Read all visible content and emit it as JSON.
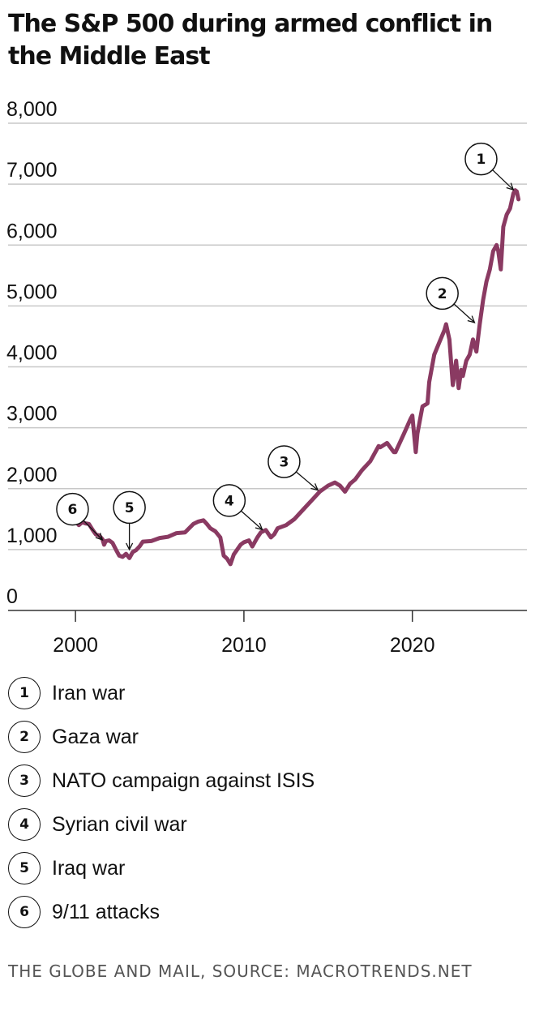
{
  "title": "The S&P 500 during armed conflict in the Middle East",
  "colors": {
    "line": "#8a3a62",
    "grid": "#c8c8c8",
    "axis": "#333333",
    "text": "#111111"
  },
  "chart_data": {
    "type": "line",
    "title": "The S&P 500 during armed conflict in the Middle East",
    "xlabel": "",
    "ylabel": "",
    "xlim": [
      1996,
      2026.8
    ],
    "ylim": [
      0,
      8000
    ],
    "x_ticks": [
      2000,
      2010,
      2020
    ],
    "x_tick_labels": [
      "2000",
      "2010",
      "2020"
    ],
    "y_ticks": [
      0,
      1000,
      2000,
      3000,
      4000,
      5000,
      6000,
      7000,
      8000
    ],
    "y_tick_labels": [
      "0",
      "1,000",
      "2,000",
      "3,000",
      "4,000",
      "5,000",
      "6,000",
      "7,000",
      "8,000"
    ],
    "grid": true,
    "series": [
      {
        "name": "S&P 500",
        "x": [
          2000.0,
          2000.2,
          2000.4,
          2000.6,
          2000.8,
          2001.0,
          2001.2,
          2001.4,
          2001.6,
          2001.7,
          2001.8,
          2002.0,
          2002.2,
          2002.4,
          2002.6,
          2002.8,
          2003.0,
          2003.2,
          2003.4,
          2003.6,
          2003.8,
          2004.0,
          2004.5,
          2005.0,
          2005.5,
          2006.0,
          2006.5,
          2007.0,
          2007.3,
          2007.6,
          2007.8,
          2008.0,
          2008.3,
          2008.6,
          2008.8,
          2009.0,
          2009.2,
          2009.4,
          2009.6,
          2009.8,
          2010.0,
          2010.3,
          2010.5,
          2010.8,
          2011.0,
          2011.3,
          2011.6,
          2011.8,
          2012.0,
          2012.5,
          2013.0,
          2013.5,
          2014.0,
          2014.5,
          2015.0,
          2015.4,
          2015.7,
          2016.0,
          2016.3,
          2016.6,
          2017.0,
          2017.5,
          2018.0,
          2018.1,
          2018.5,
          2018.9,
          2019.0,
          2019.5,
          2019.9,
          2020.0,
          2020.2,
          2020.3,
          2020.6,
          2020.9,
          2021.0,
          2021.3,
          2021.6,
          2021.9,
          2022.0,
          2022.2,
          2022.4,
          2022.6,
          2022.75,
          2022.9,
          2023.0,
          2023.2,
          2023.4,
          2023.6,
          2023.8,
          2024.0,
          2024.2,
          2024.4,
          2024.6,
          2024.8,
          2025.0,
          2025.1,
          2025.25,
          2025.4,
          2025.6,
          2025.8,
          2026.0,
          2026.1,
          2026.2,
          2026.3
        ],
        "values": [
          1470,
          1400,
          1450,
          1430,
          1420,
          1330,
          1250,
          1230,
          1170,
          1080,
          1140,
          1150,
          1110,
          1000,
          900,
          880,
          930,
          860,
          960,
          990,
          1050,
          1130,
          1140,
          1190,
          1210,
          1270,
          1280,
          1420,
          1460,
          1480,
          1420,
          1350,
          1300,
          1200,
          900,
          850,
          760,
          920,
          1000,
          1080,
          1120,
          1150,
          1050,
          1200,
          1280,
          1320,
          1200,
          1250,
          1350,
          1400,
          1500,
          1650,
          1800,
          1950,
          2050,
          2100,
          2050,
          1950,
          2080,
          2150,
          2300,
          2450,
          2700,
          2680,
          2750,
          2600,
          2600,
          2900,
          3150,
          3200,
          2600,
          2900,
          3350,
          3400,
          3750,
          4200,
          4400,
          4600,
          4700,
          4450,
          3700,
          4100,
          3650,
          3950,
          3850,
          4100,
          4200,
          4450,
          4250,
          4700,
          5100,
          5400,
          5600,
          5900,
          6000,
          5900,
          5600,
          6300,
          6500,
          6600,
          6850,
          6900,
          6880,
          6750
        ]
      }
    ],
    "annotations": [
      {
        "num": "1",
        "x": 2026.1,
        "y": 6880
      },
      {
        "num": "2",
        "x": 2023.8,
        "y": 4700
      },
      {
        "num": "3",
        "x": 2014.5,
        "y": 1950
      },
      {
        "num": "4",
        "x": 2011.2,
        "y": 1300
      },
      {
        "num": "5",
        "x": 2003.2,
        "y": 960
      },
      {
        "num": "6",
        "x": 2001.7,
        "y": 1130
      }
    ]
  },
  "legend": [
    {
      "num": "1",
      "label": "Iran war"
    },
    {
      "num": "2",
      "label": "Gaza war"
    },
    {
      "num": "3",
      "label": "NATO campaign against ISIS"
    },
    {
      "num": "4",
      "label": "Syrian civil war"
    },
    {
      "num": "5",
      "label": "Iraq war"
    },
    {
      "num": "6",
      "label": "9/11 attacks"
    }
  ],
  "source": "THE GLOBE AND MAIL, SOURCE: MACROTRENDS.NET"
}
